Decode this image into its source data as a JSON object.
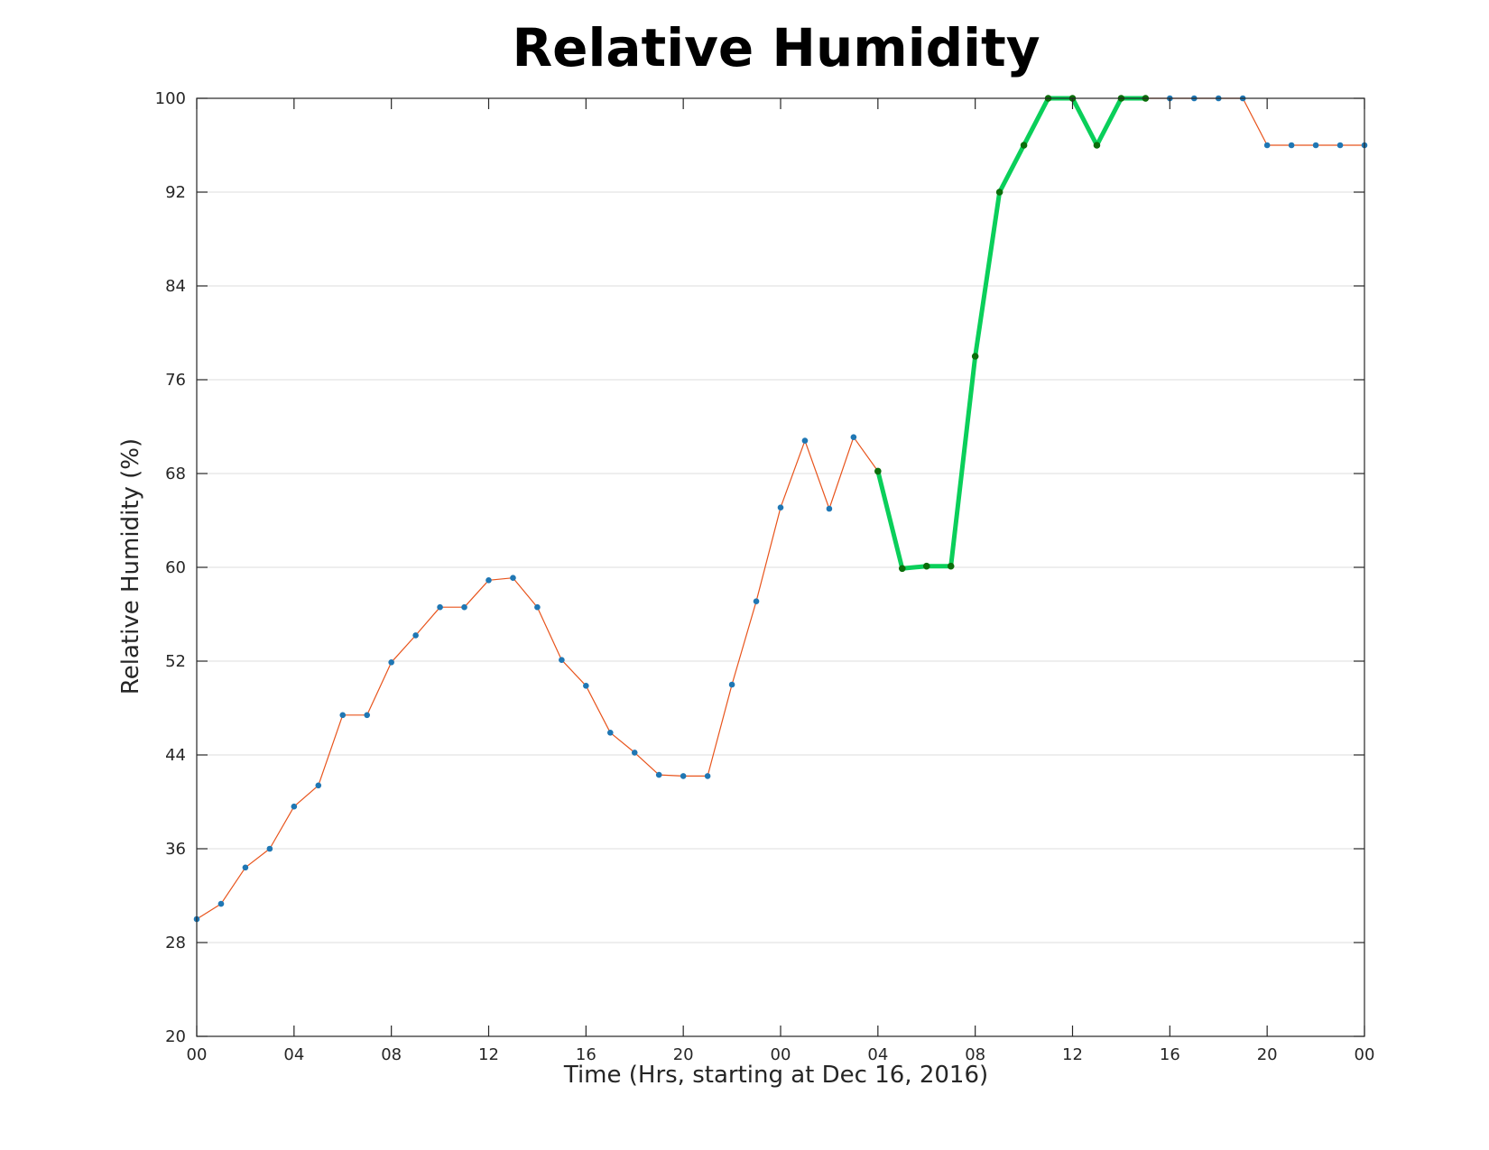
{
  "chart_data": {
    "type": "line",
    "title": "Relative Humidity",
    "xlabel": "Time (Hrs, starting at Dec 16, 2016)",
    "ylabel": "Relative Humidity (%)",
    "xlim": [
      0,
      48
    ],
    "ylim": [
      20,
      100
    ],
    "x_ticks": [
      0,
      4,
      8,
      12,
      16,
      20,
      24,
      28,
      32,
      36,
      40,
      44,
      48
    ],
    "x_tick_labels": [
      "00",
      "04",
      "08",
      "12",
      "16",
      "20",
      "00",
      "04",
      "08",
      "12",
      "16",
      "20",
      "00"
    ],
    "y_ticks": [
      20,
      28,
      36,
      44,
      52,
      60,
      68,
      76,
      84,
      92,
      100
    ],
    "grid": "horizontal",
    "series": [
      {
        "color": "#e8541c",
        "marker_color": "#1f77b4",
        "x": [
          0,
          1,
          2,
          3,
          4,
          5,
          6,
          7,
          8,
          9,
          10,
          11,
          12,
          13,
          14,
          15,
          16,
          17,
          18,
          19,
          20,
          21,
          22,
          23,
          24,
          25,
          26,
          27,
          28,
          29,
          30,
          31,
          32,
          33,
          34,
          35,
          36,
          37,
          38,
          39,
          40,
          41,
          42,
          43,
          44,
          45,
          46,
          47,
          48
        ],
        "y": [
          30,
          31.3,
          34.4,
          36,
          39.6,
          41.4,
          47.4,
          47.4,
          51.9,
          54.2,
          56.6,
          56.6,
          58.9,
          59.1,
          56.6,
          52.1,
          49.9,
          45.9,
          44.2,
          42.3,
          42.2,
          42.2,
          50,
          57.1,
          65.1,
          70.8,
          65,
          71.1,
          68.2,
          59.9,
          60.1,
          60.1,
          78,
          92,
          96,
          100,
          100,
          96,
          100,
          100,
          100,
          100,
          100,
          100,
          96,
          96,
          96,
          96,
          96
        ]
      },
      {
        "color": "#0acf5a",
        "marker_color": "#0b6e0b",
        "x": [
          28,
          29,
          30,
          31,
          32,
          33,
          34,
          35,
          36,
          37,
          38,
          39
        ],
        "y": [
          68.2,
          59.9,
          60.1,
          60.1,
          78,
          92,
          96,
          100,
          100,
          96,
          100,
          100
        ]
      }
    ]
  }
}
